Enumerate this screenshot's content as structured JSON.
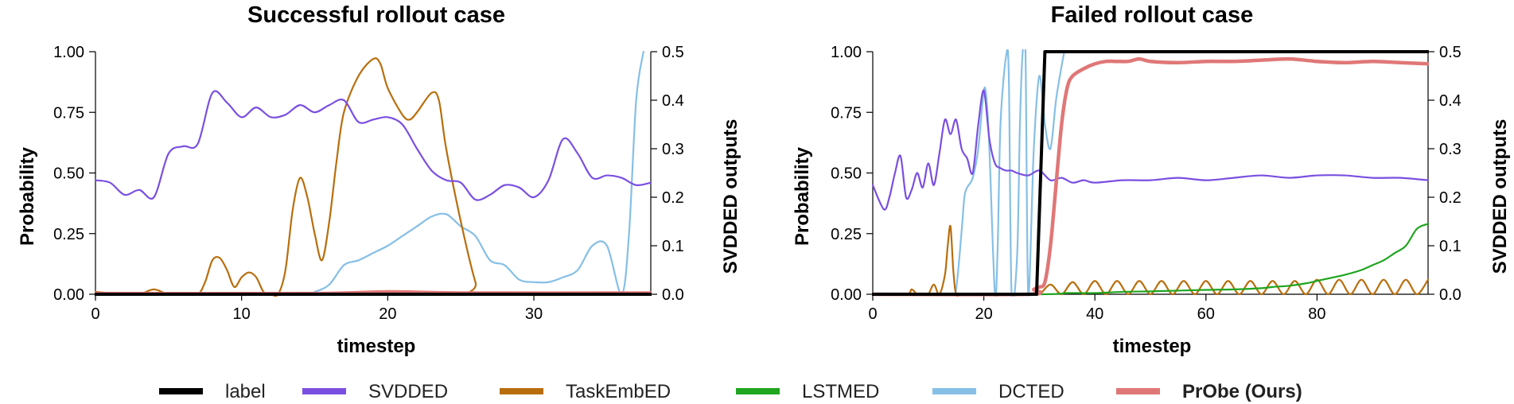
{
  "legend": [
    {
      "key": "label",
      "text": "label",
      "color": "#000000",
      "bold": false
    },
    {
      "key": "svdded",
      "text": "SVDDED",
      "color": "#7a4fe0",
      "bold": false
    },
    {
      "key": "taskembed",
      "text": "TaskEmbED",
      "color": "#b86e0d",
      "bold": false
    },
    {
      "key": "lstmed",
      "text": "LSTMED",
      "color": "#1fa51f",
      "bold": false
    },
    {
      "key": "dcted",
      "text": "DCTED",
      "color": "#86bfe6",
      "bold": false
    },
    {
      "key": "probe",
      "text": "PrObe (Ours)",
      "color": "#e07777",
      "bold": true
    }
  ],
  "chart_data": [
    {
      "type": "line",
      "title": "Successful rollout case",
      "xlabel": "timestep",
      "ylabel": "Probability",
      "ylabel_right": "SVDDED outputs",
      "xlim": [
        0,
        38
      ],
      "ylim": [
        0,
        1
      ],
      "ylim_right": [
        0,
        0.5
      ],
      "xticks": [
        0,
        10,
        20,
        30
      ],
      "xtick_labels": [
        "0",
        "10",
        "20",
        "30"
      ],
      "yticks": [
        0,
        0.25,
        0.5,
        0.75,
        1.0
      ],
      "ytick_labels": [
        "0.00",
        "0.25",
        "0.50",
        "0.75",
        "1.00"
      ],
      "yticks_right": [
        0,
        0.1,
        0.2,
        0.3,
        0.4,
        0.5
      ],
      "ytick_labels_right": [
        "0.0",
        "0.1",
        "0.2",
        "0.3",
        "0.4",
        "0.5"
      ],
      "series": [
        {
          "key": "label",
          "axis": "left",
          "x": [
            0,
            38
          ],
          "y": [
            0.0,
            0.0
          ]
        },
        {
          "key": "svdded",
          "axis": "right",
          "x": [
            0,
            1,
            2,
            3,
            4,
            5,
            6,
            7,
            8,
            9,
            10,
            11,
            12,
            13,
            14,
            15,
            16,
            17,
            18,
            19,
            20,
            21,
            22,
            23,
            24,
            25,
            26,
            27,
            28,
            29,
            30,
            31,
            32,
            33,
            34,
            35,
            36,
            37,
            38
          ],
          "y": [
            0.235,
            0.23,
            0.205,
            0.215,
            0.2,
            0.29,
            0.305,
            0.31,
            0.415,
            0.395,
            0.365,
            0.385,
            0.365,
            0.37,
            0.39,
            0.375,
            0.39,
            0.4,
            0.355,
            0.36,
            0.365,
            0.35,
            0.3,
            0.255,
            0.235,
            0.23,
            0.195,
            0.205,
            0.225,
            0.22,
            0.2,
            0.235,
            0.32,
            0.29,
            0.24,
            0.245,
            0.24,
            0.225,
            0.23
          ]
        },
        {
          "key": "taskembed",
          "axis": "left",
          "x": [
            0,
            2,
            3,
            4,
            5,
            6,
            7,
            7.5,
            8,
            8.5,
            9,
            9.5,
            10,
            10.5,
            11,
            11.5,
            12,
            12.5,
            13,
            13.5,
            14,
            14.5,
            15,
            15.5,
            16,
            16.5,
            17,
            18,
            19,
            19.5,
            20,
            21,
            21.5,
            22,
            23,
            23.5,
            24,
            25,
            26,
            26.5,
            38
          ],
          "y": [
            0.01,
            0.0,
            0.0,
            0.02,
            0.0,
            0.0,
            0.0,
            0.05,
            0.14,
            0.15,
            0.1,
            0.03,
            0.07,
            0.09,
            0.07,
            0.01,
            0.0,
            0.0,
            0.1,
            0.35,
            0.48,
            0.4,
            0.25,
            0.14,
            0.3,
            0.55,
            0.75,
            0.9,
            0.97,
            0.95,
            0.85,
            0.74,
            0.72,
            0.75,
            0.83,
            0.8,
            0.6,
            0.3,
            0.05,
            0.0,
            0.0
          ]
        },
        {
          "key": "lstmed",
          "axis": "left",
          "x": [
            0,
            38
          ],
          "y": [
            0.0,
            0.0
          ]
        },
        {
          "key": "dcted",
          "axis": "right",
          "x": [
            0,
            14,
            15,
            16,
            17,
            18,
            19,
            20,
            21,
            22,
            23,
            24,
            25,
            26,
            27,
            28,
            29,
            30,
            31,
            32,
            33,
            34,
            35,
            36,
            36.5,
            37,
            37.5
          ],
          "y": [
            0.0,
            0.0,
            0.005,
            0.02,
            0.06,
            0.07,
            0.085,
            0.1,
            0.12,
            0.14,
            0.16,
            0.165,
            0.14,
            0.12,
            0.07,
            0.06,
            0.03,
            0.025,
            0.025,
            0.035,
            0.05,
            0.1,
            0.1,
            0.0,
            0.12,
            0.4,
            0.5
          ]
        },
        {
          "key": "probe",
          "axis": "left",
          "x": [
            0,
            15,
            20,
            25,
            38
          ],
          "y": [
            0.003,
            0.003,
            0.01,
            0.005,
            0.005
          ]
        }
      ]
    },
    {
      "type": "line",
      "title": "Failed rollout case",
      "xlabel": "timestep",
      "ylabel": "Probability",
      "ylabel_right": "SVDDED outputs",
      "xlim": [
        0,
        100
      ],
      "ylim": [
        0,
        1
      ],
      "ylim_right": [
        0,
        0.5
      ],
      "xticks": [
        0,
        20,
        40,
        60,
        80
      ],
      "xtick_labels": [
        "0",
        "20",
        "40",
        "60",
        "80"
      ],
      "yticks": [
        0,
        0.25,
        0.5,
        0.75,
        1.0
      ],
      "ytick_labels": [
        "0.00",
        "0.25",
        "0.50",
        "0.75",
        "1.00"
      ],
      "yticks_right": [
        0,
        0.1,
        0.2,
        0.3,
        0.4,
        0.5
      ],
      "ytick_labels_right": [
        "0.0",
        "0.1",
        "0.2",
        "0.3",
        "0.4",
        "0.5"
      ],
      "series": [
        {
          "key": "label",
          "axis": "left",
          "x": [
            0,
            29.5,
            31,
            100
          ],
          "y": [
            0.0,
            0.0,
            1.0,
            1.0
          ]
        },
        {
          "key": "svdded",
          "axis": "right",
          "x": [
            0,
            2,
            3,
            4,
            5,
            6,
            7,
            8,
            9,
            10,
            11,
            12,
            13,
            14,
            15,
            16,
            17,
            18,
            19,
            20,
            21,
            22,
            23,
            24,
            25,
            26,
            28,
            30,
            32,
            34,
            36,
            38,
            40,
            45,
            50,
            55,
            60,
            65,
            70,
            75,
            80,
            85,
            90,
            95,
            100
          ],
          "y": [
            0.225,
            0.175,
            0.2,
            0.25,
            0.285,
            0.2,
            0.215,
            0.25,
            0.22,
            0.27,
            0.225,
            0.29,
            0.36,
            0.33,
            0.36,
            0.3,
            0.28,
            0.25,
            0.35,
            0.42,
            0.32,
            0.27,
            0.26,
            0.255,
            0.255,
            0.25,
            0.245,
            0.255,
            0.235,
            0.24,
            0.23,
            0.235,
            0.23,
            0.235,
            0.235,
            0.24,
            0.235,
            0.24,
            0.245,
            0.24,
            0.245,
            0.245,
            0.24,
            0.24,
            0.235
          ]
        },
        {
          "key": "taskembed",
          "axis": "left",
          "x": [
            0,
            6,
            7,
            8,
            9,
            10,
            11,
            12,
            13,
            13.5,
            14,
            14.5,
            15,
            16,
            18,
            20,
            28,
            30,
            32,
            34,
            36,
            38,
            40,
            42,
            44,
            46,
            48,
            50,
            52,
            54,
            56,
            58,
            60,
            62,
            64,
            66,
            68,
            70,
            72,
            74,
            76,
            78,
            80,
            82,
            84,
            86,
            88,
            90,
            92,
            94,
            96,
            98,
            100
          ],
          "y": [
            0.0,
            0.0,
            0.02,
            0.0,
            0.0,
            0.0,
            0.04,
            0.0,
            0.08,
            0.2,
            0.28,
            0.1,
            0.0,
            0.0,
            0.0,
            0.0,
            0.0,
            0.0,
            0.04,
            0.0,
            0.05,
            0.0,
            0.055,
            0.0,
            0.055,
            0.0,
            0.055,
            0.0,
            0.055,
            0.0,
            0.055,
            0.0,
            0.055,
            0.0,
            0.055,
            0.0,
            0.055,
            0.0,
            0.055,
            0.0,
            0.055,
            0.0,
            0.06,
            0.0,
            0.06,
            0.0,
            0.06,
            0.0,
            0.06,
            0.0,
            0.06,
            0.0,
            0.06
          ]
        },
        {
          "key": "lstmed",
          "axis": "left",
          "x": [
            0,
            30,
            35,
            40,
            45,
            50,
            55,
            60,
            65,
            70,
            72,
            75,
            78,
            80,
            83,
            85,
            88,
            90,
            92,
            94,
            96,
            98,
            100
          ],
          "y": [
            0.0,
            0.0,
            0.005,
            0.005,
            0.01,
            0.012,
            0.015,
            0.018,
            0.02,
            0.025,
            0.03,
            0.035,
            0.045,
            0.055,
            0.07,
            0.08,
            0.1,
            0.12,
            0.14,
            0.17,
            0.2,
            0.27,
            0.29
          ]
        },
        {
          "key": "dcted",
          "axis": "right",
          "x": [
            0,
            14,
            15,
            16,
            16.5,
            17,
            18,
            19,
            20,
            20.5,
            21,
            22,
            22.5,
            23,
            24,
            24.5,
            25,
            26,
            26.5,
            27,
            27.5,
            28,
            29,
            30,
            31,
            32,
            33,
            34,
            34.5
          ],
          "y": [
            0.0,
            0.0,
            0.01,
            0.13,
            0.2,
            0.22,
            0.24,
            0.3,
            0.42,
            0.4,
            0.3,
            0.0,
            0.1,
            0.35,
            0.49,
            0.45,
            0.0,
            0.08,
            0.35,
            0.5,
            0.5,
            0.0,
            0.3,
            0.45,
            0.35,
            0.3,
            0.4,
            0.47,
            0.5
          ]
        },
        {
          "key": "probe",
          "axis": "left",
          "x": [
            0,
            28,
            29,
            30,
            31,
            32,
            33,
            34,
            35,
            36,
            38,
            40,
            42,
            44,
            46,
            48,
            50,
            55,
            60,
            65,
            70,
            75,
            80,
            85,
            90,
            95,
            100
          ],
          "y": [
            0.0,
            0.0,
            0.02,
            0.03,
            0.05,
            0.2,
            0.45,
            0.7,
            0.85,
            0.9,
            0.93,
            0.95,
            0.96,
            0.96,
            0.96,
            0.97,
            0.96,
            0.955,
            0.96,
            0.96,
            0.965,
            0.97,
            0.96,
            0.955,
            0.96,
            0.955,
            0.95
          ]
        }
      ]
    }
  ]
}
